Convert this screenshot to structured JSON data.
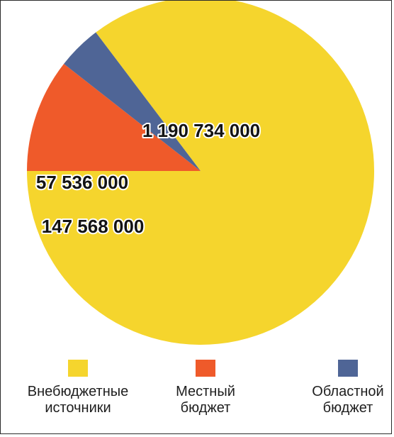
{
  "chart_data": {
    "type": "pie",
    "slices": [
      {
        "label": "Внебюджетные источники",
        "legend_lines": [
          "Внебюджетные",
          "источники"
        ],
        "value": 1190734000,
        "value_label": "1 190 734 000",
        "color": "#f5d52d"
      },
      {
        "label": "Местный бюджет",
        "legend_lines": [
          "Местный",
          "бюджет"
        ],
        "value": 147568000,
        "value_label": "147 568 000",
        "color": "#ef5a2a"
      },
      {
        "label": "Областной бюджет",
        "legend_lines": [
          "Областной",
          "бюджет"
        ],
        "value": 57536000,
        "value_label": "57 536 000",
        "color": "#4f6596"
      }
    ],
    "legend_position": "bottom"
  }
}
